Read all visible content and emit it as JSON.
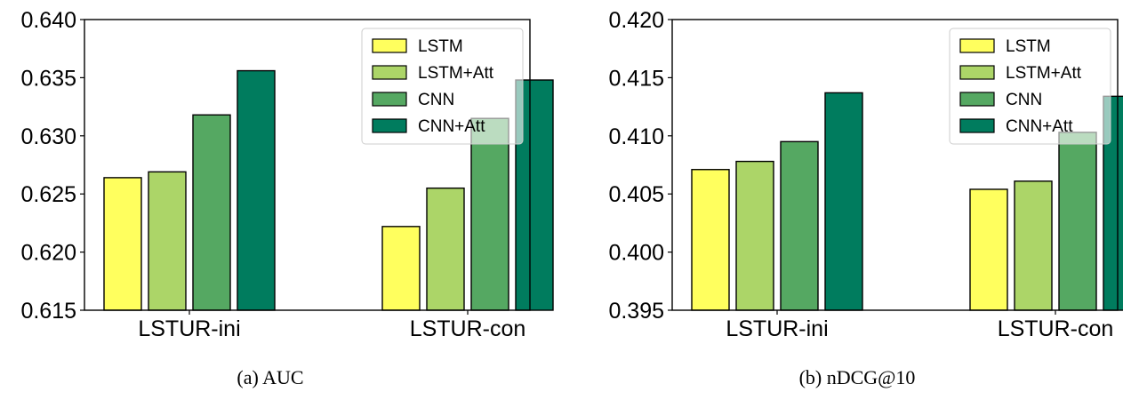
{
  "palette": {
    "LSTM": "#ffff5e",
    "LSTM+Att": "#acd568",
    "CNN": "#55a862",
    "CNN+Att": "#007c5e"
  },
  "chart_data": [
    {
      "type": "bar",
      "caption": "(a) AUC",
      "categories": [
        "LSTUR-ini",
        "LSTUR-con"
      ],
      "series": [
        {
          "name": "LSTM",
          "values": [
            0.6264,
            0.6222
          ]
        },
        {
          "name": "LSTM+Att",
          "values": [
            0.6269,
            0.6255
          ]
        },
        {
          "name": "CNN",
          "values": [
            0.6318,
            0.6315
          ]
        },
        {
          "name": "CNN+Att",
          "values": [
            0.6356,
            0.6348
          ]
        }
      ],
      "ylim": [
        0.615,
        0.64
      ],
      "yticks": [
        "0.615",
        "0.620",
        "0.625",
        "0.630",
        "0.635",
        "0.640"
      ],
      "legend": "top-right",
      "grid": false
    },
    {
      "type": "bar",
      "caption": "(b) nDCG@10",
      "categories": [
        "LSTUR-ini",
        "LSTUR-con"
      ],
      "series": [
        {
          "name": "LSTM",
          "values": [
            0.4071,
            0.4054
          ]
        },
        {
          "name": "LSTM+Att",
          "values": [
            0.4078,
            0.4061
          ]
        },
        {
          "name": "CNN",
          "values": [
            0.4095,
            0.4103
          ]
        },
        {
          "name": "CNN+Att",
          "values": [
            0.4137,
            0.4134
          ]
        }
      ],
      "ylim": [
        0.395,
        0.42
      ],
      "yticks": [
        "0.395",
        "0.400",
        "0.405",
        "0.410",
        "0.415",
        "0.420"
      ],
      "legend": "top-right",
      "grid": false
    }
  ]
}
